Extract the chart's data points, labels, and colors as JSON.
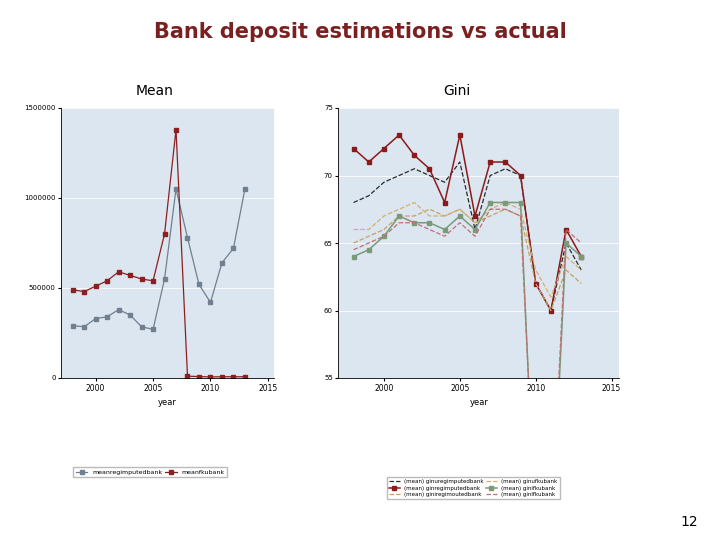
{
  "title": "Bank deposit estimations vs actual",
  "title_color": "#7B2020",
  "title_fontsize": 15,
  "slide_number": "12",
  "background_color": "#FFFFFF",
  "left_label": "Mean",
  "right_label": "Gini",
  "mean_years": [
    1998,
    1999,
    2000,
    2001,
    2002,
    2003,
    2004,
    2005,
    2006,
    2007,
    2008,
    2009,
    2010,
    2011,
    2012,
    2013
  ],
  "mean_regimputed": [
    290000,
    285000,
    330000,
    340000,
    380000,
    350000,
    285000,
    270000,
    550000,
    1050000,
    780000,
    520000,
    420000,
    640000,
    720000,
    1050000
  ],
  "mean_fku": [
    490000,
    480000,
    510000,
    540000,
    590000,
    570000,
    550000,
    540000,
    800000,
    1380000,
    10000,
    8000,
    6000,
    7000,
    7000,
    7000
  ],
  "mean_ylim": [
    0,
    1500000
  ],
  "mean_yticks": [
    0,
    500000,
    1000000,
    1500000
  ],
  "mean_ytick_labels": [
    "0",
    "500000",
    "1000000",
    "1500000"
  ],
  "gini_years": [
    1998,
    1999,
    2000,
    2001,
    2002,
    2003,
    2004,
    2005,
    2006,
    2007,
    2008,
    2009,
    2010,
    2011,
    2012,
    2013
  ],
  "gini_regimputed_dashed": [
    68,
    68.5,
    69.5,
    70,
    70.5,
    70,
    69.5,
    71,
    66,
    70,
    70.5,
    70,
    62,
    60,
    65,
    63
  ],
  "gini_regimputed_solid": [
    72,
    71,
    72,
    73,
    71.5,
    70.5,
    68,
    73,
    67,
    71,
    71,
    70,
    62,
    60,
    66,
    64
  ],
  "gini_iregimputed_dashed": [
    65,
    65.5,
    66,
    67,
    67,
    67.5,
    67,
    67.5,
    66.5,
    67,
    67.5,
    67,
    62,
    60,
    63,
    62
  ],
  "gini_ufku_dashed": [
    66,
    66,
    67,
    67.5,
    68,
    67,
    67,
    67.5,
    66.5,
    67.5,
    68,
    67.5,
    63,
    61,
    64,
    63
  ],
  "gini_fku_solid": [
    64,
    64.5,
    65.5,
    67,
    66.5,
    66.5,
    66,
    67,
    66,
    68,
    68,
    68,
    43,
    42,
    65,
    64
  ],
  "gini_lfku_dashed": [
    64.5,
    65,
    65.5,
    66.5,
    66.5,
    66,
    65.5,
    66.5,
    65.5,
    67.5,
    67.5,
    67,
    44,
    43,
    66,
    65
  ],
  "gini_ylim": [
    55,
    75
  ],
  "gini_yticks": [
    55,
    60,
    65,
    70,
    75
  ],
  "gini_ytick_labels": [
    "55",
    "60",
    "65",
    "70",
    "75"
  ],
  "mean_color1": "#708090",
  "mean_color2": "#8B2020",
  "plot_bg": "#DCE6F0"
}
